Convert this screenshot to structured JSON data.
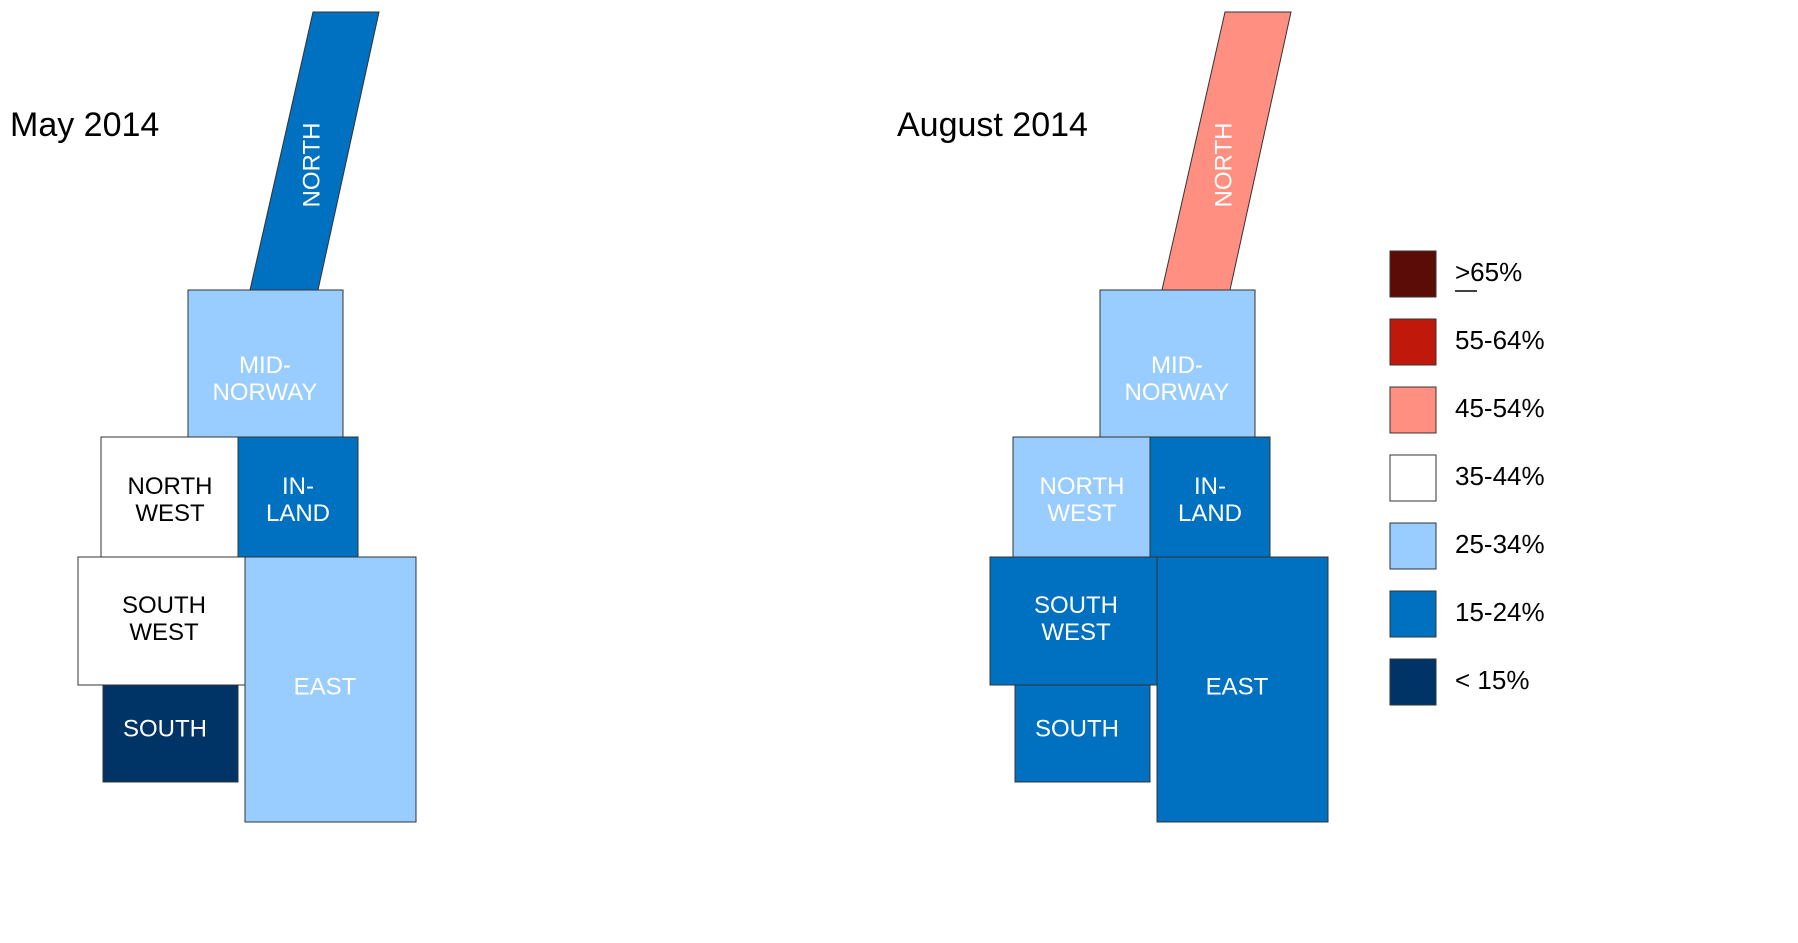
{
  "maps": [
    {
      "title": "May 2014",
      "regions": [
        {
          "label": [
            "NORTH"
          ],
          "color": "#0070c0"
        },
        {
          "label": [
            "MID-",
            "NORWAY"
          ],
          "color": "#99ccff"
        },
        {
          "label": [
            "NORTH",
            "WEST"
          ],
          "color": "#ffffff"
        },
        {
          "label": [
            "IN-",
            "LAND"
          ],
          "color": "#0070c0"
        },
        {
          "label": [
            "SOUTH",
            "WEST"
          ],
          "color": "#ffffff"
        },
        {
          "label": [
            "EAST"
          ],
          "color": "#99ccff"
        },
        {
          "label": [
            "SOUTH"
          ],
          "color": "#003366"
        }
      ]
    },
    {
      "title": "August 2014",
      "regions": [
        {
          "label": [
            "NORTH"
          ],
          "color": "#ff8f80"
        },
        {
          "label": [
            "MID-",
            "NORWAY"
          ],
          "color": "#99ccff"
        },
        {
          "label": [
            "NORTH",
            "WEST"
          ],
          "color": "#99ccff"
        },
        {
          "label": [
            "IN-",
            "LAND"
          ],
          "color": "#0070c0"
        },
        {
          "label": [
            "SOUTH",
            "WEST"
          ],
          "color": "#0070c0"
        },
        {
          "label": [
            "EAST"
          ],
          "color": "#0070c0"
        },
        {
          "label": [
            "SOUTH"
          ],
          "color": "#0070c0"
        }
      ]
    }
  ],
  "legend": [
    {
      "label": ">65%",
      "color": "#5c0c06"
    },
    {
      "label": "55-64%",
      "color": "#c0180a"
    },
    {
      "label": "45-54%",
      "color": "#ff8f80"
    },
    {
      "label": "35-44%",
      "color": "#ffffff"
    },
    {
      "label": "25-34%",
      "color": "#99ccff"
    },
    {
      "label": "15-24%",
      "color": "#0070c0"
    },
    {
      "label": "< 15%",
      "color": "#003366"
    }
  ]
}
